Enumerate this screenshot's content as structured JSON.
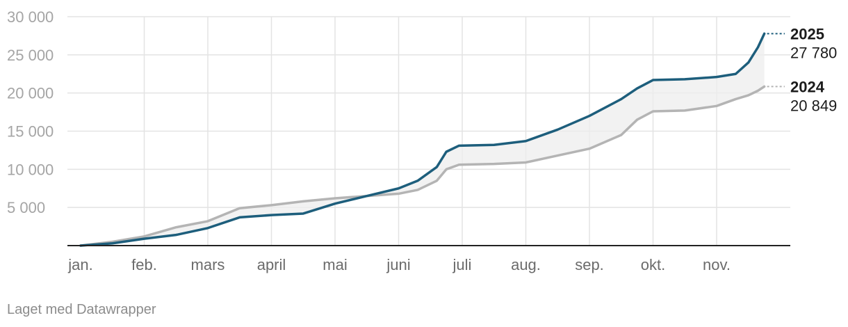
{
  "chart_data": {
    "type": "line",
    "title": "",
    "xlabel": "",
    "ylabel": "",
    "ylim": [
      0,
      30000
    ],
    "y_ticks": [
      5000,
      10000,
      15000,
      20000,
      25000,
      30000
    ],
    "y_tick_labels": [
      "5 000",
      "10 000",
      "15 000",
      "20 000",
      "25 000",
      "30 000"
    ],
    "x_tick_labels": [
      "jan.",
      "feb.",
      "mars",
      "april",
      "mai",
      "juni",
      "juli",
      "aug.",
      "sep.",
      "okt.",
      "nov."
    ],
    "grid": true,
    "fill_between_series": true,
    "x": [
      0,
      0.5,
      1,
      1.5,
      2,
      2.5,
      3,
      3.5,
      4,
      4.5,
      5,
      5.3,
      5.6,
      5.75,
      5.95,
      6.5,
      7,
      7.5,
      8,
      8.5,
      8.75,
      9,
      9.5,
      10,
      10.3,
      10.5,
      10.65,
      10.75
    ],
    "series": [
      {
        "name": "2025",
        "color": "#1d5e7c",
        "end_label": "27 780",
        "values": [
          0,
          300,
          900,
          1400,
          2300,
          3700,
          4000,
          4200,
          5500,
          6500,
          7500,
          8500,
          10300,
          12300,
          13100,
          13200,
          13700,
          15200,
          17000,
          19200,
          20600,
          21700,
          21800,
          22100,
          22500,
          24000,
          26000,
          27780
        ]
      },
      {
        "name": "2024",
        "color": "#b4b4b4",
        "end_label": "20 849",
        "values": [
          0,
          500,
          1200,
          2400,
          3200,
          4900,
          5300,
          5800,
          6200,
          6500,
          6800,
          7300,
          8500,
          10000,
          10600,
          10700,
          10900,
          11800,
          12700,
          14500,
          16500,
          17600,
          17700,
          18300,
          19200,
          19700,
          20300,
          20849
        ]
      }
    ]
  },
  "footer": {
    "credit": "Laget med Datawrapper"
  }
}
